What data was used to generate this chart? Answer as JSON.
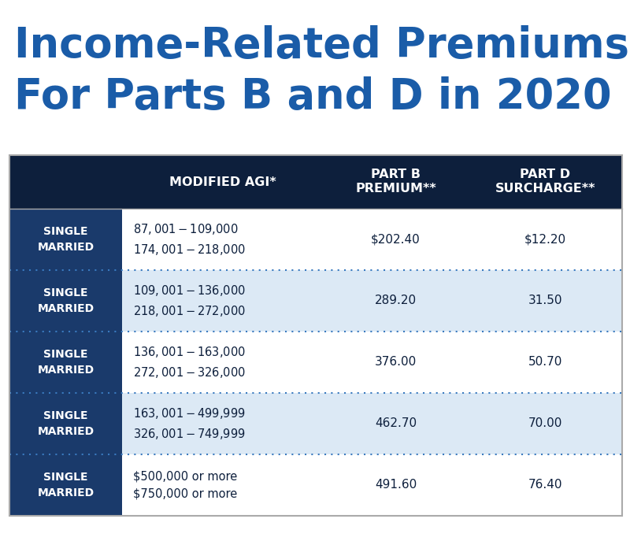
{
  "title_line1": "Income-Related Premiums",
  "title_line2": "For Parts B and D in 2020",
  "title_color": "#1a5ca8",
  "background_color": "#ffffff",
  "header_bg_color": "#0d1f3c",
  "header_text_color": "#ffffff",
  "col0_bg": "#1a3a6b",
  "col0_text": "#ffffff",
  "row_bg_white": "#ffffff",
  "row_bg_blue": "#dce9f5",
  "row_text_color": "#0d1f3c",
  "divider_color": "#3a7abf",
  "headers": [
    "",
    "MODIFIED AGI*",
    "PART B\nPREMIUM**",
    "PART D\nSURCHARGE**"
  ],
  "rows": [
    {
      "status": "SINGLE\nMARRIED",
      "agi": "$87,001-$109,000\n$174,001-$218,000",
      "part_b": "$202.40",
      "part_d": "$12.20",
      "bg": "white"
    },
    {
      "status": "SINGLE\nMARRIED",
      "agi": "$109,001-$136,000\n$218,001-$272,000",
      "part_b": "289.20",
      "part_d": "31.50",
      "bg": "blue"
    },
    {
      "status": "SINGLE\nMARRIED",
      "agi": "$136,001-$163,000\n$272,001-$326,000",
      "part_b": "376.00",
      "part_d": "50.70",
      "bg": "white"
    },
    {
      "status": "SINGLE\nMARRIED",
      "agi": "$163,001-$499,999\n$326,001-$749,999",
      "part_b": "462.70",
      "part_d": "70.00",
      "bg": "blue"
    },
    {
      "status": "SINGLE\nMARRIED",
      "agi": "$500,000 or more\n$750,000 or more",
      "part_b": "491.60",
      "part_d": "76.40",
      "bg": "white"
    }
  ],
  "fig_width": 8.0,
  "fig_height": 6.87,
  "dpi": 100
}
